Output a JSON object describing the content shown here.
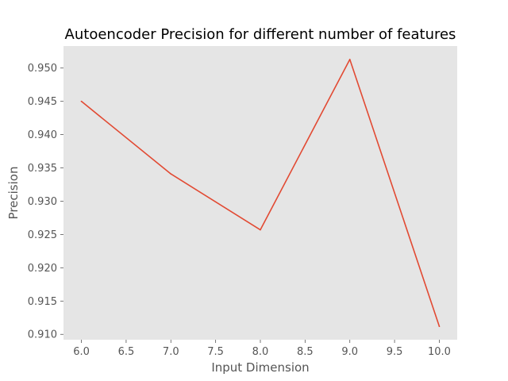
{
  "chart_data": {
    "type": "line",
    "title": "Autoencoder Precision for different number of features",
    "xlabel": "Input Dimension",
    "ylabel": "Precision",
    "x": [
      6,
      7,
      8,
      9,
      10
    ],
    "series": [
      {
        "values": [
          0.945,
          0.9341,
          0.9257,
          0.9513,
          0.9112
        ]
      }
    ],
    "xticks": [
      6.0,
      6.5,
      7.0,
      7.5,
      8.0,
      8.5,
      9.0,
      9.5,
      10.0
    ],
    "xtick_labels": [
      "6.0",
      "6.5",
      "7.0",
      "7.5",
      "8.0",
      "8.5",
      "9.0",
      "9.5",
      "10.0"
    ],
    "yticks": [
      0.91,
      0.915,
      0.92,
      0.925,
      0.93,
      0.935,
      0.94,
      0.945,
      0.95
    ],
    "ytick_labels": [
      "0.910",
      "0.915",
      "0.920",
      "0.925",
      "0.930",
      "0.935",
      "0.940",
      "0.945",
      "0.950"
    ],
    "xlim": [
      5.8,
      10.2
    ],
    "ylim": [
      0.909195,
      0.953305
    ],
    "grid": false,
    "colors": {
      "line": "#E24A33",
      "plot_background": "#E5E5E5",
      "tick_mark": "#555555"
    }
  }
}
